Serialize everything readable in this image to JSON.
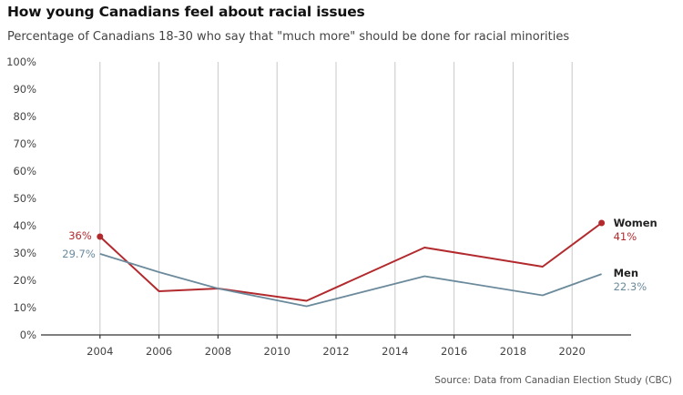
{
  "header": {
    "title": "How young Canadians feel about racial issues",
    "subtitle": "Percentage of Canadians 18-30 who say that \"much more\" should be done for racial minorities"
  },
  "source": "Source: Data from Canadian Election Study (CBC)",
  "colors": {
    "women": "#b22a2e",
    "men": "#6b8a9c"
  },
  "chart_data": {
    "type": "line",
    "title": "How young Canadians feel about racial issues",
    "subtitle": "Percentage of Canadians 18-30 who say that \"much more\" should be done for racial minorities",
    "xlabel": "",
    "ylabel": "",
    "xlim": [
      2002,
      2022
    ],
    "ylim": [
      0,
      100
    ],
    "xticks": [
      2004,
      2006,
      2008,
      2010,
      2012,
      2014,
      2016,
      2018,
      2020
    ],
    "yticks": [
      "0%",
      "10%",
      "20%",
      "30%",
      "40%",
      "50%",
      "60%",
      "70%",
      "80%",
      "90%",
      "100%"
    ],
    "grid": "vertical",
    "series": [
      {
        "name": "Women",
        "x": [
          2004,
          2006,
          2008,
          2011,
          2015,
          2019,
          2021
        ],
        "values": [
          36,
          16,
          17,
          12.5,
          32,
          25,
          41
        ],
        "start_label": "36%",
        "end_label": "41%"
      },
      {
        "name": "Men",
        "x": [
          2004,
          2006,
          2008,
          2011,
          2015,
          2019,
          2021
        ],
        "values": [
          29.7,
          23,
          17,
          10.5,
          21.5,
          14.5,
          22.3
        ],
        "start_label": "29.7%",
        "end_label": "22.3%"
      }
    ]
  }
}
